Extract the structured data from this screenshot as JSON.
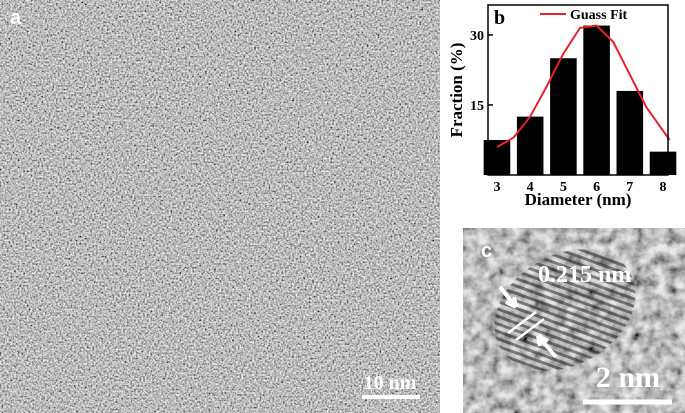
{
  "panels": {
    "a": {
      "label": "a",
      "scale_bar": "10 nm"
    },
    "c": {
      "label": "c",
      "lattice_spacing": "0.215 nm",
      "scale_bar": "2 nm"
    }
  },
  "chart_data": {
    "type": "bar",
    "panel_label": "b",
    "x": [
      3,
      4,
      5,
      6,
      7,
      8
    ],
    "values": [
      7.5,
      12.5,
      25,
      32,
      18,
      5
    ],
    "color": "#000000",
    "fit": {
      "name": "Guass Fit",
      "color": "#e8202a",
      "x": [
        3,
        3.5,
        4,
        4.5,
        5,
        5.5,
        6,
        6.5,
        7,
        7.5,
        8,
        8.2
      ],
      "values": [
        6,
        8,
        12.5,
        19,
        26,
        31.5,
        32,
        28.5,
        21.5,
        14.5,
        9.5,
        7.5
      ]
    },
    "xlim": [
      2.73,
      8.15
    ],
    "ylim": [
      0,
      36.4
    ],
    "xticks": [
      3,
      4,
      5,
      6,
      7,
      8
    ],
    "yticks": [
      15,
      30
    ],
    "xlabel": "Diameter (nm)",
    "ylabel": "Fraction (%)"
  }
}
